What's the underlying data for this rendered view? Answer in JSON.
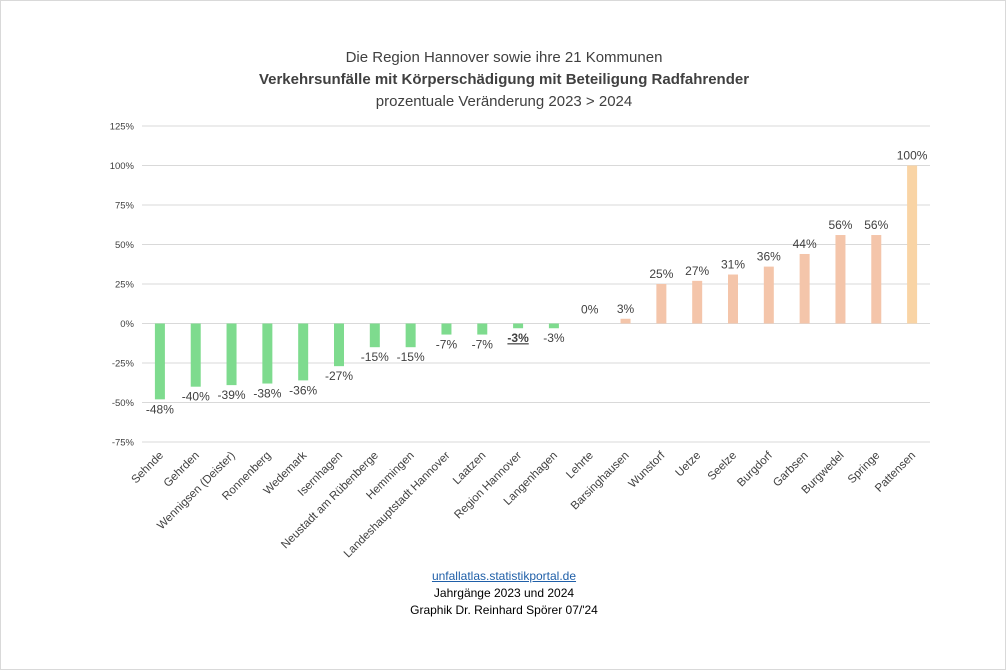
{
  "chart_data": {
    "type": "bar",
    "title": "Die Region Hannover sowie ihre 21 Kommunen",
    "subtitle": "Verkehrsunfälle mit Körperschädigung  mit Beteiligung Radfahrender",
    "subtitle2": "prozentuale Veränderung 2023 > 2024",
    "categories": [
      "Sehnde",
      "Gehrden",
      "Wennigsen (Deister)",
      "Ronnenberg",
      "Wedemark",
      "Isernhagen",
      "Neustadt am Rübenberge",
      "Hemmingen",
      "Landeshauptstadt Hannover",
      "Laatzen",
      "Region Hannover",
      "Langenhagen",
      "Lehrte",
      "Barsinghausen",
      "Wunstorf",
      "Uetze",
      "Seelze",
      "Burgdorf",
      "Garbsen",
      "Burgwedel",
      "Springe",
      "Pattensen"
    ],
    "values": [
      -48,
      -40,
      -39,
      -38,
      -36,
      -27,
      -15,
      -15,
      -7,
      -7,
      -3,
      -3,
      0,
      3,
      25,
      27,
      31,
      36,
      44,
      56,
      56,
      100
    ],
    "labels": [
      "-48%",
      "-40%",
      "-39%",
      "-38%",
      "-36%",
      "-27%",
      "-15%",
      "-15%",
      "-7%",
      "-7%",
      "-3%",
      "-3%",
      "0%",
      "3%",
      "25%",
      "27%",
      "31%",
      "36%",
      "44%",
      "56%",
      "56%",
      "100%"
    ],
    "highlight_index": 10,
    "ylim": [
      -75,
      125
    ],
    "yticks": [
      125,
      100,
      75,
      50,
      25,
      0,
      -25,
      -50,
      -75
    ],
    "ytick_labels": [
      "125%",
      "100%",
      "75%",
      "50%",
      "25%",
      "0%",
      "-25%",
      "-50%",
      "-75%"
    ],
    "grid": true,
    "colors": {
      "negative": "#7edb8e",
      "positive": "#f4c5aa",
      "top": "#f9d4a5",
      "grid": "#d9d9d9",
      "text": "#404040"
    }
  },
  "footer": {
    "link": "unfallatlas.statistikportal.de",
    "line2": "Jahrgänge 2023 und 2024",
    "line3": "Graphik Dr. Reinhard Spörer 07/'24"
  }
}
